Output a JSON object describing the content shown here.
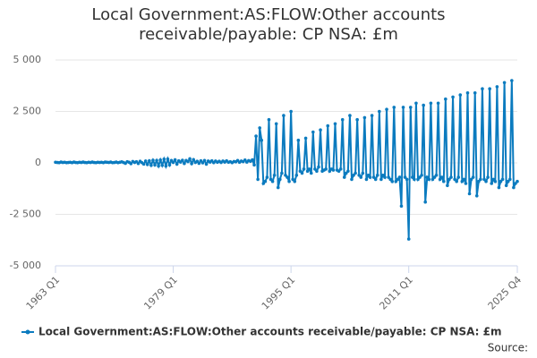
{
  "chart_data": {
    "type": "line",
    "title": "Local Government:AS:FLOW:Other accounts receivable/payable: CP NSA: £m",
    "source": "Source:",
    "categories": [
      "1963 Q1",
      null,
      null,
      null,
      null,
      null,
      null,
      null,
      null,
      null,
      null,
      null,
      null,
      null,
      null,
      null,
      null,
      null,
      null,
      null,
      null,
      null,
      null,
      null,
      null,
      null,
      null,
      null,
      null,
      null,
      null,
      null,
      null,
      null,
      null,
      null,
      null,
      null,
      null,
      null,
      null,
      null,
      null,
      null,
      null,
      null,
      null,
      null,
      null,
      null,
      null,
      null,
      null,
      null,
      null,
      null,
      null,
      null,
      null,
      null,
      null,
      null,
      null,
      null,
      "1979 Q1",
      null,
      null,
      null,
      null,
      null,
      null,
      null,
      null,
      null,
      null,
      null,
      null,
      null,
      null,
      null,
      null,
      null,
      null,
      null,
      null,
      null,
      null,
      null,
      null,
      null,
      null,
      null,
      null,
      null,
      null,
      null,
      null,
      null,
      null,
      null,
      null,
      null,
      null,
      null,
      null,
      null,
      null,
      null,
      null,
      null,
      null,
      null,
      null,
      null,
      null,
      null,
      null,
      null,
      null,
      null,
      null,
      null,
      null,
      null,
      null,
      null,
      null,
      null,
      "1995 Q1",
      null,
      null,
      null,
      null,
      null,
      null,
      null,
      null,
      null,
      null,
      null,
      null,
      null,
      null,
      null,
      null,
      null,
      null,
      null,
      null,
      null,
      null,
      null,
      null,
      null,
      null,
      null,
      null,
      null,
      null,
      null,
      null,
      null,
      null,
      null,
      null,
      null,
      null,
      null,
      null,
      null,
      null,
      null,
      null,
      null,
      null,
      null,
      null,
      null,
      null,
      null,
      null,
      null,
      null,
      null,
      null,
      null,
      null,
      null,
      null,
      null,
      null,
      null,
      "2011 Q1",
      null,
      null,
      null,
      null,
      null,
      null,
      null,
      null,
      null,
      null,
      null,
      null,
      null,
      null,
      null,
      null,
      null,
      null,
      null,
      null,
      null,
      null,
      null,
      null,
      null,
      null,
      null,
      null,
      null,
      null,
      null,
      null,
      null,
      null,
      null,
      null,
      null,
      null,
      null,
      null,
      null,
      null,
      null,
      null,
      null,
      null,
      null,
      null,
      null,
      null,
      null,
      null,
      null,
      null,
      null,
      null,
      null,
      null,
      "2025 Q4"
    ],
    "series": [
      {
        "name": "Local Government:AS:FLOW:Other accounts receivable/payable: CP NSA: £m",
        "color": "#0b7bbf",
        "values": [
          30,
          20,
          10,
          40,
          20,
          30,
          10,
          20,
          30,
          10,
          40,
          20,
          10,
          30,
          20,
          40,
          20,
          10,
          30,
          20,
          40,
          20,
          10,
          30,
          20,
          30,
          10,
          40,
          30,
          20,
          40,
          10,
          20,
          40,
          10,
          30,
          50,
          20,
          -20,
          60,
          30,
          -40,
          70,
          20,
          60,
          -30,
          80,
          10,
          -60,
          90,
          -80,
          100,
          -120,
          130,
          -100,
          120,
          -150,
          140,
          -120,
          180,
          -150,
          190,
          -100,
          120,
          20,
          150,
          -60,
          100,
          40,
          130,
          -30,
          120,
          60,
          200,
          -40,
          160,
          20,
          80,
          -20,
          100,
          0,
          120,
          -60,
          90,
          40,
          100,
          10,
          90,
          30,
          80,
          20,
          90,
          40,
          100,
          30,
          60,
          10,
          70,
          50,
          120,
          30,
          90,
          60,
          140,
          40,
          110,
          80,
          150,
          -100,
          1300,
          -800,
          1700,
          1100,
          -1000,
          -900,
          -700,
          2100,
          -800,
          -900,
          -600,
          1900,
          -1200,
          -800,
          -500,
          2300,
          -600,
          -700,
          -900,
          2500,
          -800,
          -900,
          -600,
          1100,
          -400,
          -500,
          -300,
          1200,
          -400,
          -300,
          -500,
          1500,
          -300,
          -400,
          -200,
          1600,
          -400,
          -350,
          -300,
          1800,
          -400,
          -300,
          -350,
          1900,
          -350,
          -400,
          -300,
          2100,
          -700,
          -500,
          -400,
          2300,
          -800,
          -600,
          -500,
          2100,
          -600,
          -700,
          -500,
          2200,
          -800,
          -600,
          -700,
          2300,
          -700,
          -800,
          -600,
          2500,
          -800,
          -600,
          -700,
          2600,
          -700,
          -800,
          -900,
          2700,
          -900,
          -800,
          -700,
          -2100,
          2700,
          -700,
          -800,
          -3700,
          2700,
          -700,
          -800,
          2900,
          -800,
          -700,
          -600,
          2800,
          -1900,
          -700,
          -800,
          2900,
          -800,
          -700,
          -600,
          2900,
          -800,
          -700,
          -900,
          3100,
          -1100,
          -800,
          -700,
          3200,
          -800,
          -900,
          -700,
          3300,
          -900,
          -800,
          -1000,
          3400,
          -1500,
          -800,
          -700,
          3400,
          -1600,
          -900,
          -800,
          3600,
          -800,
          -900,
          -700,
          3600,
          -1000,
          -800,
          -900,
          3700,
          -1200,
          -900,
          -800,
          3900,
          -1100,
          -900,
          -800,
          4000,
          -1200,
          -1000,
          -900
        ]
      }
    ],
    "ylim": [
      -5000,
      5000
    ],
    "yticks": [
      {
        "value": -5000,
        "label": "-5 000"
      },
      {
        "value": -2500,
        "label": "-2 500"
      },
      0,
      {
        "value": 2500,
        "label": "2 500"
      },
      {
        "value": 5000,
        "label": "5 000"
      }
    ],
    "grid": true,
    "legend": "bottom"
  }
}
